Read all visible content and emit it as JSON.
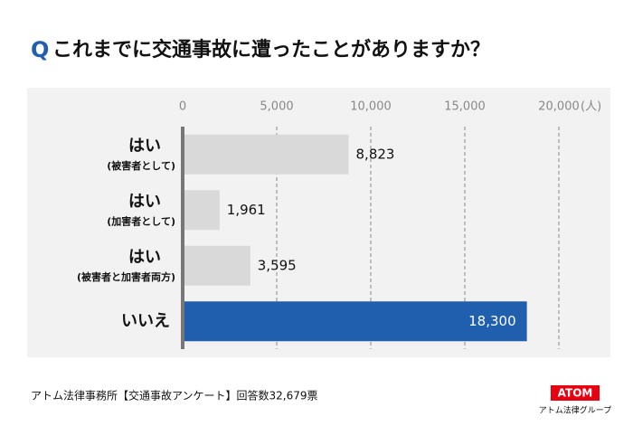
{
  "chart_data": {
    "type": "hbar",
    "title_marker": "Q",
    "title": "これまでに交通事故に遭ったことがありますか？",
    "categories": [
      "はい",
      "はい",
      "はい",
      "いいえ"
    ],
    "category_notes": [
      "(被害者として)",
      "(加害者として)",
      "(被害者と加害者両方)",
      null
    ],
    "values": [
      8823,
      1961,
      3595,
      18300
    ],
    "value_labels": [
      "8,823",
      "1,961",
      "3,595",
      "18,300"
    ],
    "colors": [
      "#d9d9d9",
      "#d9d9d9",
      "#d9d9d9",
      "#1f5fad"
    ],
    "xlim": [
      0,
      20000
    ],
    "xticks": [
      0,
      {
        "value": 5000,
        "label": "5,000"
      },
      {
        "value": 10000,
        "label": "10,000"
      },
      {
        "value": 15000,
        "label": "15,000"
      },
      {
        "value": 20000,
        "label": "20,000"
      }
    ],
    "x_unit": "(人)",
    "grid": true,
    "footer": "アトム法律事務所【交通事故アンケート】回答数32,679票",
    "logo": "ATOM",
    "logo_caption": "アトム法律グループ"
  }
}
